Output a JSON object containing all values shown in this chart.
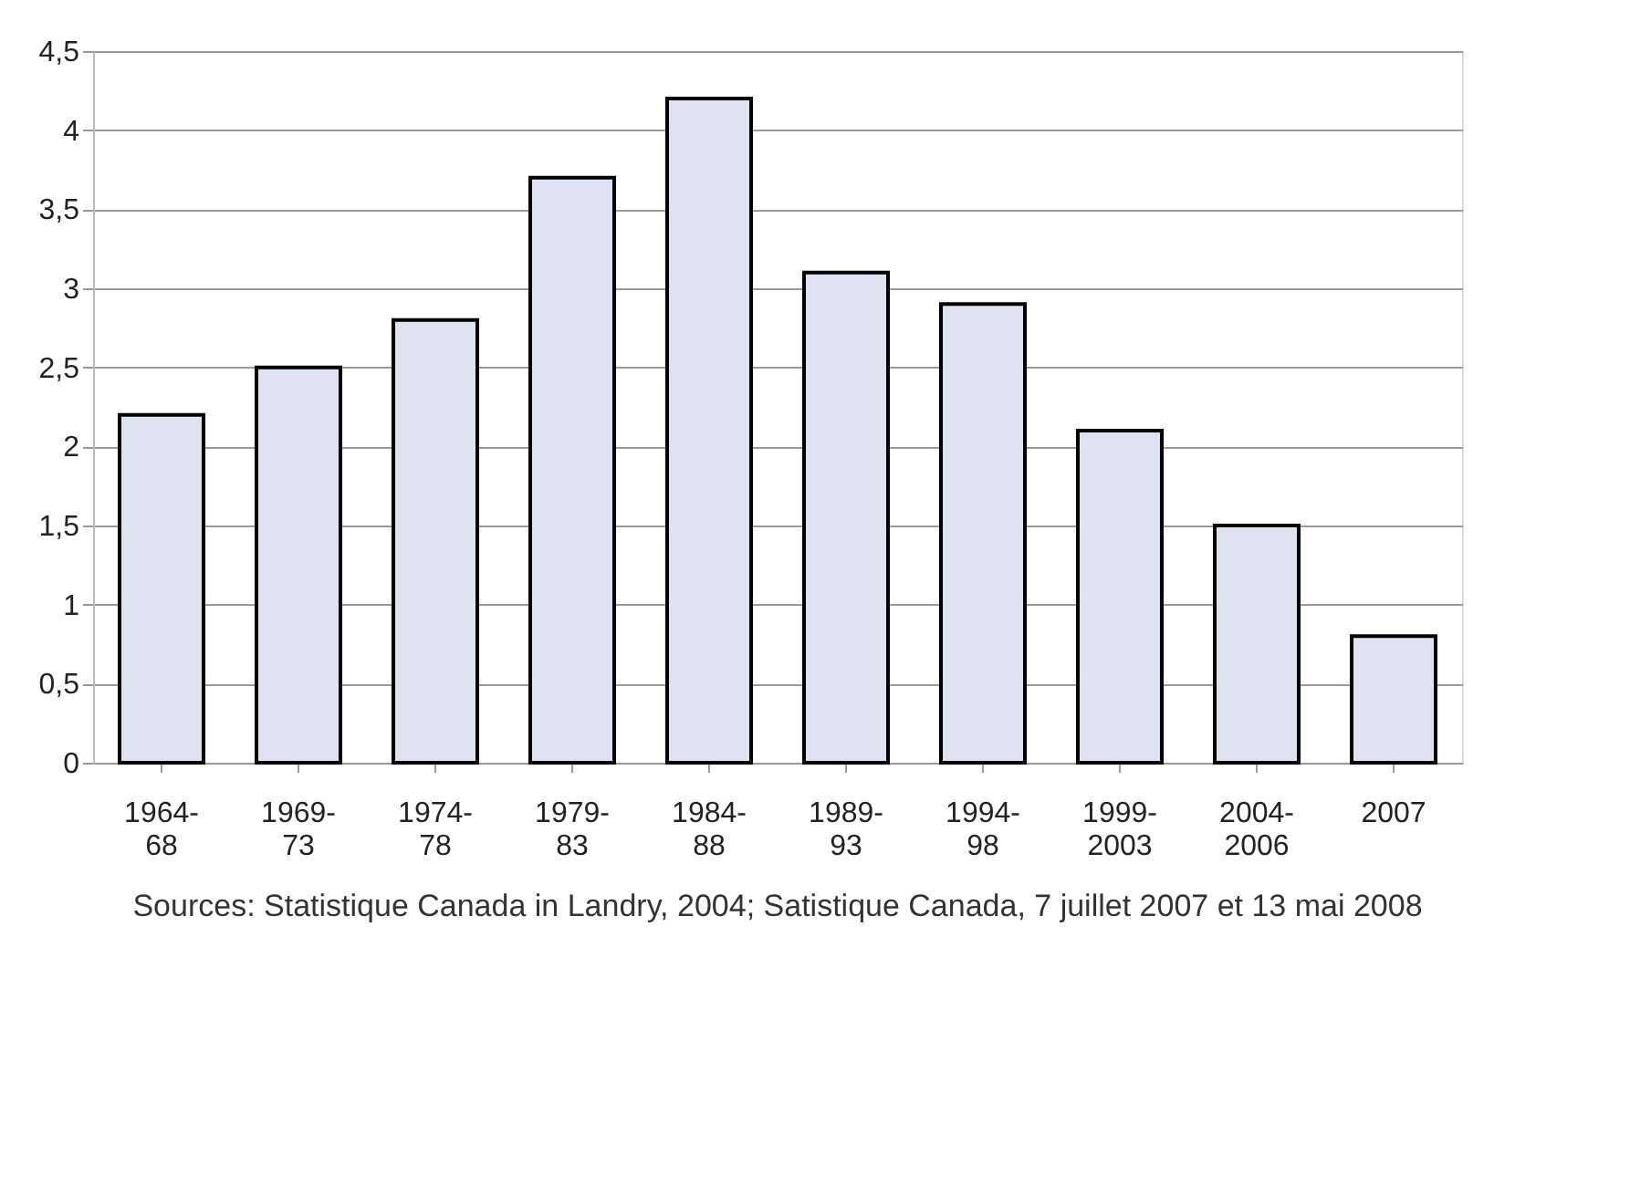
{
  "chart_data": {
    "type": "bar",
    "categories": [
      "1964-68",
      "1969-73",
      "1974-78",
      "1979-83",
      "1984-88",
      "1989-93",
      "1994-98",
      "1999-2003",
      "2004-2006",
      "2007"
    ],
    "values": [
      2.2,
      2.5,
      2.8,
      3.7,
      4.2,
      3.1,
      2.9,
      2.1,
      1.5,
      0.8
    ],
    "color": "#dfe2f0",
    "ylim": [
      0,
      4.5
    ],
    "yticks": [
      0,
      {
        "value": 0.5,
        "label": "0,5"
      },
      1,
      {
        "value": 1.5,
        "label": "1,5"
      },
      2,
      {
        "value": 2.5,
        "label": "2,5"
      },
      3,
      {
        "value": 3.5,
        "label": "3,5"
      },
      4,
      {
        "value": 4.5,
        "label": "4,5"
      }
    ],
    "grid": "y",
    "annotations": [
      "Sources: Statistique Canada in Landry, 2004; Satistique Canada, 7 juillet 2007 et 13 mai 2008"
    ]
  }
}
